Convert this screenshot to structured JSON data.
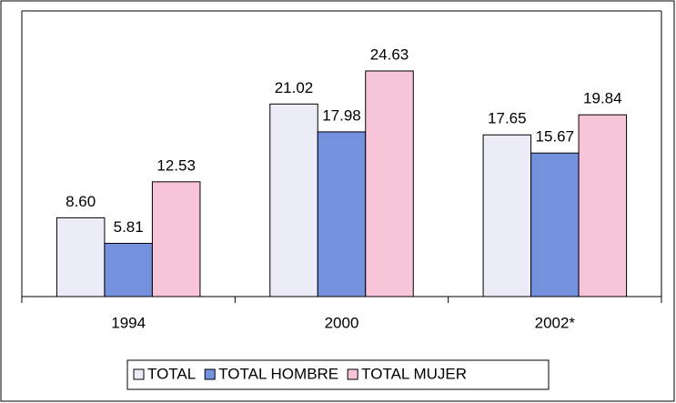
{
  "chart_data": {
    "type": "bar",
    "categories": [
      "1994",
      "2000",
      "2002*"
    ],
    "series": [
      {
        "name": "TOTAL",
        "color": "#ececf8",
        "values": [
          8.6,
          21.02,
          17.65
        ],
        "value_labels": [
          "8.60",
          "21.02",
          "17.65"
        ]
      },
      {
        "name": "TOTAL HOMBRE",
        "color": "#7391dc",
        "values": [
          5.81,
          17.98,
          15.67
        ],
        "value_labels": [
          "5.81",
          "17.98",
          "15.67"
        ]
      },
      {
        "name": "TOTAL MUJER",
        "color": "#f8c4da",
        "values": [
          12.53,
          24.63,
          19.84
        ],
        "value_labels": [
          "12.53",
          "24.63",
          "19.84"
        ]
      }
    ],
    "legend": "bottom"
  }
}
